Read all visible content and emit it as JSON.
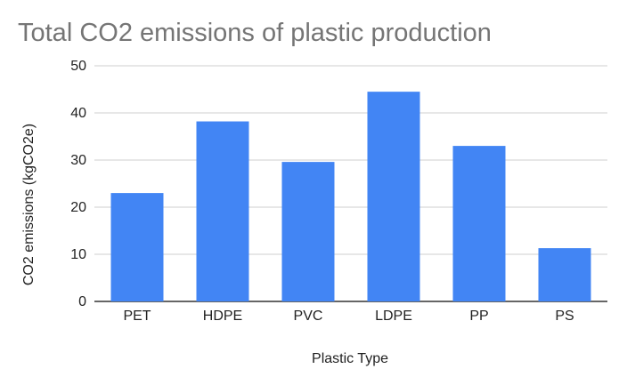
{
  "chart_data": {
    "type": "bar",
    "title": "Total CO2 emissions of plastic production",
    "xlabel": "Plastic Type",
    "ylabel": "CO2 emissions (kgCO2e)",
    "categories": [
      "PET",
      "HDPE",
      "PVC",
      "LDPE",
      "PP",
      "PS"
    ],
    "values": [
      23,
      38.2,
      29.6,
      44.5,
      33,
      11.3
    ],
    "ylim": [
      0,
      50
    ],
    "yticks": [
      "0",
      "10",
      "20",
      "30",
      "40",
      "50"
    ],
    "grid": true,
    "legend": "none",
    "bar_color": "#4285F4"
  }
}
